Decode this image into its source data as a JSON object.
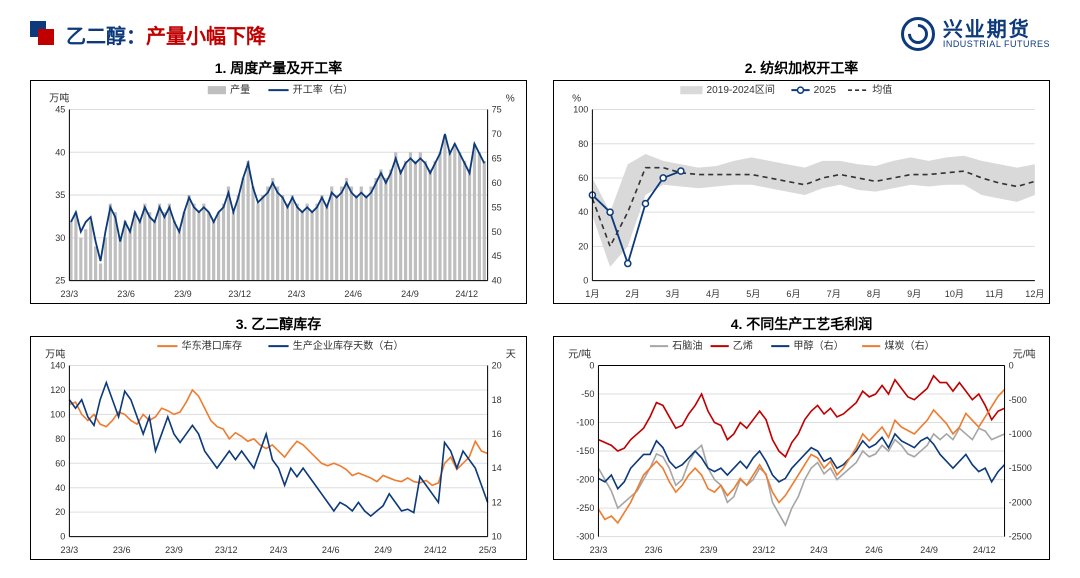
{
  "header": {
    "title_prefix": "乙二醇：",
    "title_main": "产量小幅下降",
    "logo_cn": "兴业期货",
    "logo_en": "INDUSTRIAL FUTURES",
    "brand_blue": "#0d3a7a",
    "brand_red": "#c00000"
  },
  "chart1": {
    "title": "1. 周度产量及开工率",
    "type": "bar+line",
    "y_left_label": "万吨",
    "y_right_label": "%",
    "y_left": {
      "min": 25,
      "max": 45,
      "step": 5
    },
    "y_right": {
      "min": 40,
      "max": 75,
      "step": 5
    },
    "x_labels": [
      "23/3",
      "23/6",
      "23/9",
      "23/12",
      "24/3",
      "24/6",
      "24/9",
      "24/12"
    ],
    "legend": [
      {
        "name": "产量",
        "type": "bar",
        "color": "#bfbfbf"
      },
      {
        "name": "开工率（右）",
        "type": "line",
        "color": "#0d3a7a"
      }
    ],
    "bars": [
      32,
      33,
      30,
      31,
      32,
      29,
      27,
      30,
      34,
      33,
      30,
      32,
      31,
      33,
      32,
      34,
      33,
      32,
      34,
      33,
      34,
      32,
      31,
      33,
      35,
      34,
      33,
      34,
      33,
      32,
      33,
      34,
      36,
      33,
      35,
      37,
      39,
      36,
      34,
      35,
      36,
      37,
      36,
      35,
      34,
      35,
      34,
      33,
      34,
      33,
      34,
      35,
      34,
      36,
      35,
      36,
      37,
      36,
      35,
      36,
      35,
      36,
      37,
      38,
      37,
      38,
      40,
      38,
      39,
      40,
      39,
      40,
      39,
      38,
      39,
      40,
      42,
      40,
      41,
      40,
      39,
      38,
      41,
      40,
      39
    ],
    "line": [
      52,
      54,
      50,
      52,
      53,
      48,
      44,
      50,
      55,
      53,
      48,
      52,
      50,
      54,
      52,
      55,
      53,
      52,
      55,
      53,
      55,
      52,
      50,
      54,
      57,
      55,
      54,
      55,
      54,
      52,
      54,
      55,
      58,
      54,
      57,
      61,
      64,
      59,
      56,
      57,
      58,
      60,
      58,
      57,
      55,
      57,
      55,
      54,
      55,
      54,
      55,
      57,
      55,
      58,
      57,
      58,
      60,
      58,
      57,
      58,
      57,
      58,
      60,
      62,
      60,
      62,
      65,
      62,
      64,
      65,
      64,
      65,
      64,
      62,
      64,
      66,
      70,
      66,
      68,
      66,
      64,
      62,
      68,
      66,
      64
    ],
    "bar_color": "#bfbfbf",
    "line_color": "#0d3a7a",
    "line_width": 1.8,
    "bg": "#ffffff",
    "grid_color": "#e8e8e8"
  },
  "chart2": {
    "title": "2. 纺织加权开工率",
    "type": "band+line",
    "y_label": "%",
    "y": {
      "min": 0,
      "max": 100,
      "step": 20
    },
    "x_labels": [
      "1月",
      "2月",
      "3月",
      "4月",
      "5月",
      "6月",
      "7月",
      "8月",
      "9月",
      "10月",
      "11月",
      "12月"
    ],
    "legend": [
      {
        "name": "2019-2024区间",
        "type": "band",
        "color": "#d9d9d9"
      },
      {
        "name": "2025",
        "type": "marker-line",
        "color": "#0d3a7a"
      },
      {
        "name": "均值",
        "type": "dash",
        "color": "#333333"
      }
    ],
    "band_upper": [
      60,
      40,
      68,
      74,
      70,
      68,
      66,
      67,
      70,
      72,
      70,
      68,
      66,
      70,
      70,
      68,
      67,
      70,
      72,
      70,
      72,
      73,
      70,
      68,
      66,
      68
    ],
    "band_lower": [
      38,
      8,
      20,
      50,
      56,
      55,
      54,
      55,
      56,
      56,
      54,
      52,
      50,
      54,
      56,
      53,
      52,
      54,
      56,
      55,
      56,
      56,
      50,
      48,
      46,
      50
    ],
    "mean": [
      48,
      20,
      40,
      66,
      66,
      63,
      62,
      62,
      62,
      62,
      60,
      58,
      56,
      60,
      62,
      60,
      58,
      60,
      62,
      62,
      63,
      64,
      60,
      57,
      55,
      58
    ],
    "series_2025": [
      50,
      40,
      10,
      45,
      60,
      64
    ],
    "band_color": "#d9d9d9",
    "mean_color": "#333333",
    "series_color": "#0d3a7a",
    "line_width": 1.8,
    "marker_size": 3,
    "bg": "#ffffff",
    "grid_color": "#e8e8e8"
  },
  "chart3": {
    "title": "3. 乙二醇库存",
    "type": "line2",
    "y_left_label": "万吨",
    "y_right_label": "天",
    "y_left": {
      "min": 0,
      "max": 140,
      "step": 20
    },
    "y_right": {
      "min": 10,
      "max": 20,
      "step": 2
    },
    "x_labels": [
      "23/3",
      "23/6",
      "23/9",
      "23/12",
      "24/3",
      "24/6",
      "24/9",
      "24/12",
      "25/3"
    ],
    "legend": [
      {
        "name": "华东港口库存",
        "type": "line",
        "color": "#ed7d31"
      },
      {
        "name": "生产企业库存天数（右）",
        "type": "line",
        "color": "#0d3a7a"
      }
    ],
    "series_a": [
      108,
      110,
      100,
      95,
      100,
      92,
      90,
      95,
      102,
      100,
      95,
      92,
      100,
      95,
      98,
      105,
      103,
      100,
      102,
      110,
      120,
      115,
      105,
      95,
      90,
      88,
      80,
      85,
      82,
      78,
      80,
      75,
      72,
      75,
      70,
      65,
      72,
      78,
      75,
      70,
      65,
      60,
      58,
      60,
      58,
      55,
      50,
      52,
      50,
      48,
      45,
      50,
      48,
      46,
      45,
      48,
      45,
      44,
      46,
      42,
      44,
      60,
      65,
      55,
      60,
      65,
      78,
      70,
      68
    ],
    "series_b": [
      18,
      17.5,
      18,
      17,
      16.5,
      18,
      19,
      18,
      17,
      18.5,
      18,
      17,
      16,
      17,
      15,
      16,
      17,
      16,
      15.5,
      16,
      16.5,
      16,
      15,
      14.5,
      14,
      14.5,
      15,
      14.5,
      15,
      14.5,
      14,
      15,
      16,
      14.5,
      14,
      13,
      14,
      13.5,
      14,
      13.5,
      13,
      12.5,
      12,
      11.5,
      12,
      11.8,
      11.5,
      12,
      11.5,
      11.2,
      11.5,
      11.8,
      12.5,
      12,
      11.5,
      11.6,
      11.4,
      13.5,
      13,
      12.5,
      12,
      15.5,
      15,
      14,
      15,
      14.5,
      14,
      13,
      12
    ],
    "color_a": "#ed7d31",
    "color_b": "#0d3a7a",
    "line_width": 1.6,
    "bg": "#ffffff",
    "grid_color": "#e8e8e8"
  },
  "chart4": {
    "title": "4. 不同生产工艺毛利润",
    "type": "line4",
    "y_left_label": "元/吨",
    "y_right_label": "元/吨",
    "y_left": {
      "min": -300,
      "max": 0,
      "step": 50
    },
    "y_right": {
      "min": -2500,
      "max": 0,
      "step": 500
    },
    "x_labels": [
      "23/3",
      "23/6",
      "23/9",
      "23/12",
      "24/3",
      "24/6",
      "24/9",
      "24/12"
    ],
    "legend": [
      {
        "name": "石脑油",
        "type": "line",
        "color": "#a6a6a6"
      },
      {
        "name": "乙烯",
        "type": "line",
        "color": "#c00000"
      },
      {
        "name": "甲醇（右）",
        "type": "line",
        "color": "#0d3a7a"
      },
      {
        "name": "煤炭（右）",
        "type": "line",
        "color": "#ed7d31"
      }
    ],
    "s1": [
      -180,
      -200,
      -220,
      -250,
      -240,
      -230,
      -220,
      -200,
      -180,
      -155,
      -160,
      -180,
      -210,
      -200,
      -170,
      -150,
      -140,
      -180,
      -200,
      -210,
      -240,
      -230,
      -200,
      -210,
      -200,
      -180,
      -190,
      -240,
      -260,
      -280,
      -250,
      -230,
      -200,
      -180,
      -170,
      -190,
      -180,
      -200,
      -190,
      -180,
      -170,
      -150,
      -160,
      -155,
      -140,
      -150,
      -130,
      -140,
      -155,
      -160,
      -150,
      -140,
      -120,
      -130,
      -120,
      -130,
      -110,
      -120,
      -130,
      -110,
      -115,
      -130,
      -125,
      -120
    ],
    "s2": [
      -130,
      -135,
      -140,
      -150,
      -145,
      -130,
      -120,
      -110,
      -90,
      -65,
      -70,
      -90,
      -110,
      -105,
      -85,
      -70,
      -50,
      -80,
      -100,
      -105,
      -130,
      -120,
      -100,
      -110,
      -95,
      -80,
      -95,
      -130,
      -150,
      -160,
      -135,
      -120,
      -95,
      -80,
      -70,
      -85,
      -75,
      -90,
      -85,
      -75,
      -65,
      -45,
      -55,
      -50,
      -35,
      -50,
      -25,
      -40,
      -55,
      -60,
      -50,
      -40,
      -18,
      -30,
      -30,
      -45,
      -30,
      -45,
      -60,
      -50,
      -70,
      -95,
      -80,
      -75
    ],
    "s3": [
      -1650,
      -1700,
      -1600,
      -1800,
      -1700,
      -1500,
      -1400,
      -1300,
      -1300,
      -1100,
      -1200,
      -1400,
      -1500,
      -1450,
      -1350,
      -1250,
      -1350,
      -1500,
      -1550,
      -1500,
      -1600,
      -1500,
      -1400,
      -1500,
      -1350,
      -1250,
      -1400,
      -1600,
      -1700,
      -1650,
      -1500,
      -1400,
      -1300,
      -1200,
      -1250,
      -1400,
      -1350,
      -1500,
      -1450,
      -1350,
      -1250,
      -1100,
      -1200,
      -1150,
      -1050,
      -1200,
      -1000,
      -1100,
      -1150,
      -1200,
      -1100,
      -1050,
      -1150,
      -1300,
      -1400,
      -1500,
      -1400,
      -1300,
      -1450,
      -1550,
      -1500,
      -1700,
      -1550,
      -1450
    ],
    "s4": [
      -2100,
      -2250,
      -2200,
      -2300,
      -2150,
      -2000,
      -1800,
      -1600,
      -1500,
      -1400,
      -1500,
      -1700,
      -1850,
      -1750,
      -1600,
      -1500,
      -1600,
      -1800,
      -1850,
      -1750,
      -1900,
      -1800,
      -1650,
      -1750,
      -1600,
      -1450,
      -1600,
      -1850,
      -2000,
      -1900,
      -1750,
      -1600,
      -1450,
      -1300,
      -1350,
      -1500,
      -1400,
      -1600,
      -1500,
      -1350,
      -1200,
      -1000,
      -1100,
      -1000,
      -900,
      -1050,
      -800,
      -900,
      -950,
      -1000,
      -900,
      -800,
      -650,
      -750,
      -850,
      -1000,
      -900,
      -700,
      -800,
      -900,
      -750,
      -600,
      -450,
      -350
    ],
    "c1": "#a6a6a6",
    "c2": "#c00000",
    "c3": "#0d3a7a",
    "c4": "#ed7d31",
    "line_width": 1.6,
    "bg": "#ffffff",
    "grid_color": "#e8e8e8"
  }
}
